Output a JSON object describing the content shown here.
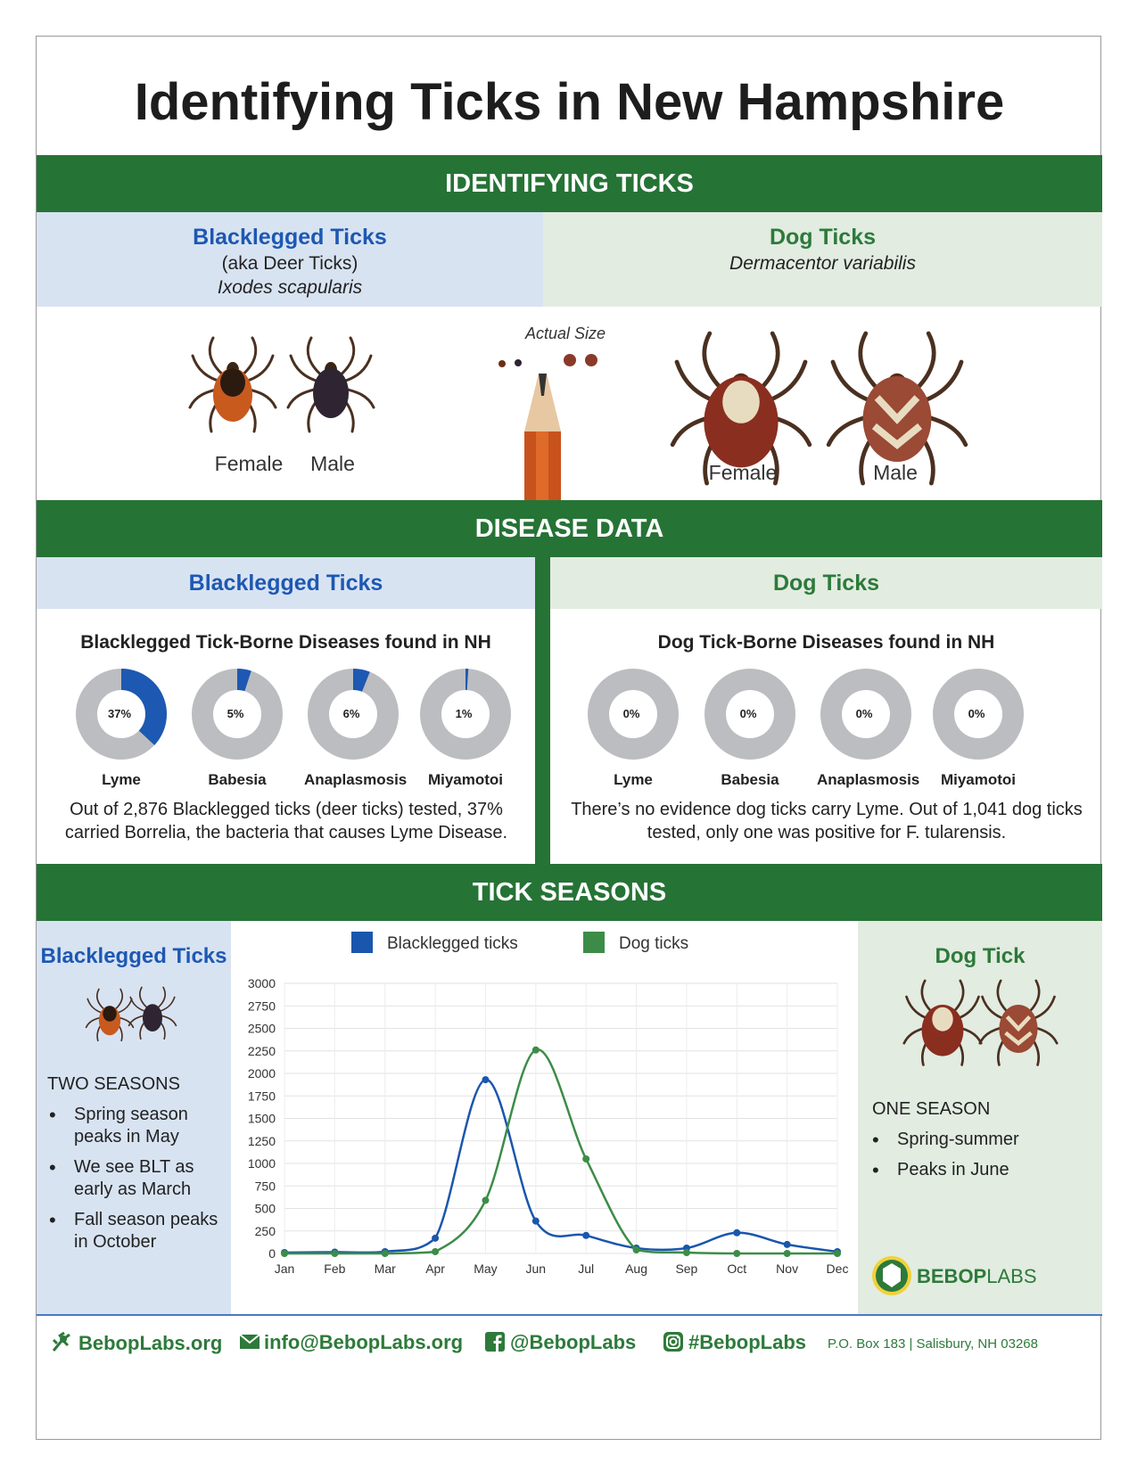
{
  "title": "Identifying Ticks in New Hampshire",
  "section1": {
    "band": "IDENTIFYING TICKS",
    "blacklegged": {
      "name": "Blacklegged Ticks",
      "aka": "(aka Deer Ticks)",
      "species": "Ixodes scapularis",
      "female": "Female",
      "male": "Male"
    },
    "dog": {
      "name": "Dog Ticks",
      "species": "Dermacentor variabilis",
      "female": "Female",
      "male": "Male"
    },
    "actual_size": "Actual Size"
  },
  "section2": {
    "band": "DISEASE DATA",
    "blacklegged": {
      "name": "Blacklegged Ticks",
      "subtitle": "Blacklegged Tick-Borne Diseases found in NH",
      "diseases": [
        {
          "label": "Lyme",
          "pct_text": "37%",
          "value": 37
        },
        {
          "label": "Babesia",
          "pct_text": "5%",
          "value": 5
        },
        {
          "label": "Anaplasmosis",
          "pct_text": "6%",
          "value": 6
        },
        {
          "label": "Miyamotoi",
          "pct_text": "1%",
          "value": 1
        }
      ],
      "note": "Out of 2,876 Blacklegged ticks (deer ticks) tested, 37% carried Borrelia, the bacteria that causes Lyme Disease."
    },
    "dog": {
      "name": "Dog Ticks",
      "subtitle": "Dog Tick-Borne Diseases found in NH",
      "diseases": [
        {
          "label": "Lyme",
          "pct_text": "0%",
          "value": 0
        },
        {
          "label": "Babesia",
          "pct_text": "0%",
          "value": 0
        },
        {
          "label": "Anaplasmosis",
          "pct_text": "0%",
          "value": 0
        },
        {
          "label": "Miyamotoi",
          "pct_text": "0%",
          "value": 0
        }
      ],
      "note": "There’s no evidence dog ticks carry Lyme. Out of 1,041 dog ticks tested, only one was positive for F. tularensis."
    }
  },
  "section3": {
    "band": "TICK SEASONS",
    "left": {
      "name": "Blacklegged Ticks",
      "heading": "TWO SEASONS",
      "bullets": [
        "Spring season peaks in May",
        "We see BLT as early as March",
        "Fall season peaks in October"
      ]
    },
    "right": {
      "name": "Dog Tick",
      "heading": "ONE SEASON",
      "bullets": [
        "Spring-summer",
        "Peaks in June"
      ]
    }
  },
  "chart_data": {
    "type": "line",
    "categories": [
      "Jan",
      "Feb",
      "Mar",
      "Apr",
      "May",
      "Jun",
      "Jul",
      "Aug",
      "Sep",
      "Oct",
      "Nov",
      "Dec"
    ],
    "series": [
      {
        "name": "Blacklegged ticks",
        "color": "#1a56ad",
        "values": [
          10,
          15,
          20,
          170,
          1930,
          360,
          200,
          60,
          60,
          230,
          100,
          20
        ]
      },
      {
        "name": "Dog ticks",
        "color": "#3c8c48",
        "values": [
          0,
          0,
          0,
          20,
          590,
          2260,
          1050,
          40,
          10,
          0,
          0,
          0
        ]
      }
    ],
    "yticks": [
      0,
      250,
      500,
      750,
      1000,
      1250,
      1500,
      1750,
      2000,
      2250,
      2500,
      2750,
      3000
    ],
    "ylim": [
      0,
      3000
    ],
    "grid": true,
    "legend": "top"
  },
  "logo": {
    "text_bold": "BEBOP",
    "text_light": "LABS"
  },
  "footer": {
    "website": "BebopLabs.org",
    "email": "info@BebopLabs.org",
    "facebook": "@BebopLabs",
    "instagram": "#BebopLabs",
    "address": "P.O. Box 183  |  Salisbury, NH 03268"
  },
  "colors": {
    "green_band": "#267336",
    "blue_text": "#1d58b2",
    "green_text": "#2d7a3a",
    "blue_panel": "#d8e3f2",
    "green_panel": "#e2ece1"
  }
}
